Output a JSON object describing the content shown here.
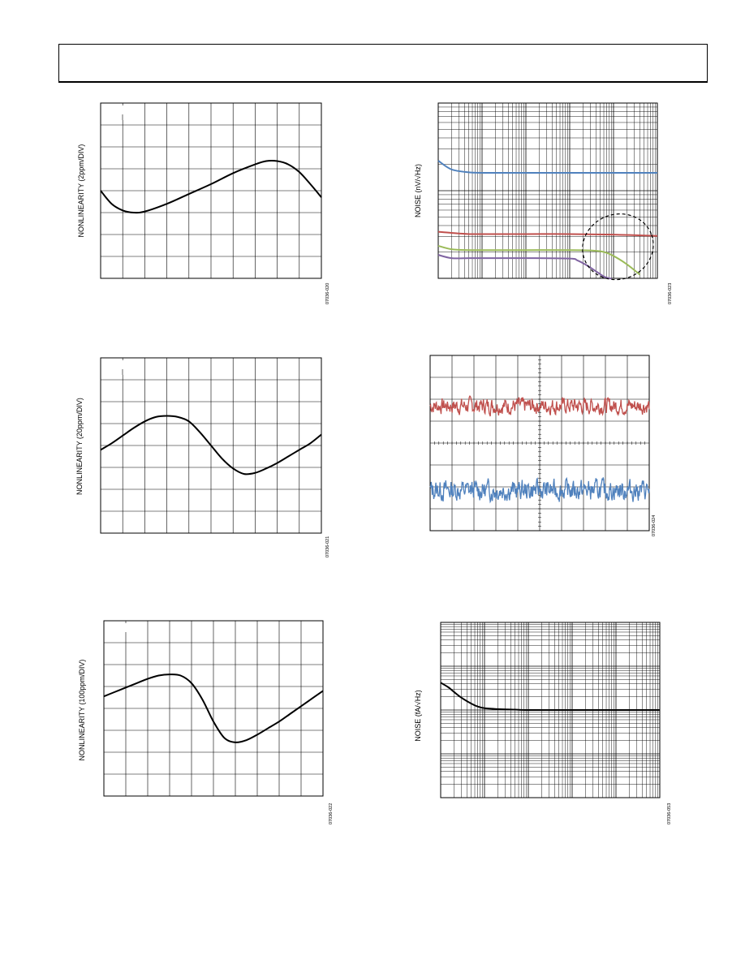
{
  "chart_data": [
    {
      "id": "c1",
      "type": "line",
      "ylabel": "NONLINEARITY (2ppm/DIV)",
      "figure_id": "07036-020",
      "x": [
        0,
        0.5,
        1,
        1.5,
        2,
        3,
        4,
        5,
        6,
        7,
        7.5,
        8,
        8.5,
        9,
        9.5,
        10
      ],
      "series": [
        {
          "color": "#000000",
          "values": [
            4.0,
            3.4,
            3.1,
            3.0,
            3.05,
            3.4,
            3.85,
            4.3,
            4.8,
            5.2,
            5.35,
            5.35,
            5.2,
            4.85,
            4.3,
            3.7
          ]
        }
      ],
      "x_divisions": 10,
      "y_divisions": 8,
      "xlim": [
        0,
        10
      ],
      "ylim": [
        0,
        8
      ],
      "grid": true
    },
    {
      "id": "c2",
      "type": "line",
      "ylabel": "NOISE (nV/√Hz)",
      "figure_id": "07036-023",
      "xscale": "log",
      "yscale": "log",
      "xlim": [
        1,
        100000
      ],
      "ylim": [
        1,
        100
      ],
      "series": [
        {
          "color": "#4f81bd",
          "x": [
            1,
            2,
            5,
            10,
            100,
            1000,
            100000
          ],
          "values": [
            22,
            17.5,
            16.2,
            16,
            16,
            16,
            16
          ]
        },
        {
          "color": "#c0504d",
          "x": [
            1,
            2,
            5,
            10,
            100,
            1000,
            10000,
            100000
          ],
          "values": [
            3.4,
            3.3,
            3.2,
            3.2,
            3.2,
            3.2,
            3.15,
            3.05
          ]
        },
        {
          "color": "#9bbb59",
          "x": [
            1,
            2,
            5,
            10,
            100,
            1000,
            3000,
            6000,
            10000,
            20000,
            40000
          ],
          "values": [
            2.35,
            2.15,
            2.1,
            2.1,
            2.1,
            2.1,
            2.08,
            2.0,
            1.8,
            1.45,
            1.1
          ]
        },
        {
          "color": "#8064a2",
          "x": [
            1,
            2,
            5,
            10,
            100,
            1000,
            1500,
            2500,
            4000,
            6000,
            8000,
            9000
          ],
          "values": [
            1.85,
            1.7,
            1.7,
            1.7,
            1.7,
            1.68,
            1.6,
            1.4,
            1.2,
            1.05,
            1.0,
            1.0
          ]
        }
      ],
      "grid": true,
      "annotation": "dashed-ellipse"
    },
    {
      "id": "c3",
      "type": "line",
      "ylabel": "NONLINEARITY (20ppm/DIV)",
      "figure_id": "07036-021",
      "x": [
        0,
        0.5,
        1,
        1.5,
        2,
        2.5,
        3,
        3.5,
        4,
        4.5,
        5,
        5.5,
        6,
        6.5,
        7,
        7.5,
        8,
        8.5,
        9,
        9.5,
        10
      ],
      "series": [
        {
          "color": "#000000",
          "values": [
            3.8,
            4.1,
            4.45,
            4.8,
            5.1,
            5.3,
            5.35,
            5.3,
            5.1,
            4.6,
            4.0,
            3.4,
            2.95,
            2.7,
            2.75,
            2.95,
            3.2,
            3.5,
            3.8,
            4.1,
            4.5
          ]
        }
      ],
      "x_divisions": 10,
      "y_divisions": 8,
      "xlim": [
        0,
        10
      ],
      "ylim": [
        0,
        8
      ],
      "grid": true
    },
    {
      "id": "c4",
      "type": "line",
      "ylabel": "",
      "figure_id": "07036-024",
      "x_divisions": 10,
      "y_divisions": 8,
      "xlim": [
        0,
        10
      ],
      "ylim": [
        0,
        8
      ],
      "grid": true,
      "series": [
        {
          "color": "#c0504d",
          "center": 5.7,
          "amplitude": 0.35,
          "points": 420,
          "seed": 7
        },
        {
          "color": "#4f81bd",
          "center": 1.85,
          "amplitude": 0.45,
          "points": 420,
          "seed": 13
        }
      ]
    },
    {
      "id": "c5",
      "type": "line",
      "ylabel": "NONLINEARITY (100ppm/DIV)",
      "figure_id": "07036-022",
      "x": [
        0,
        0.5,
        1,
        1.5,
        2,
        2.5,
        3,
        3.5,
        4,
        4.5,
        5,
        5.5,
        6,
        6.5,
        7,
        7.5,
        8,
        8.5,
        9,
        9.5,
        10
      ],
      "series": [
        {
          "color": "#000000",
          "values": [
            4.55,
            4.75,
            4.95,
            5.15,
            5.35,
            5.5,
            5.55,
            5.5,
            5.15,
            4.4,
            3.4,
            2.65,
            2.45,
            2.55,
            2.8,
            3.1,
            3.4,
            3.75,
            4.1,
            4.45,
            4.8
          ]
        }
      ],
      "x_divisions": 10,
      "y_divisions": 8,
      "xlim": [
        0,
        10
      ],
      "ylim": [
        0,
        8
      ],
      "grid": true
    },
    {
      "id": "c6",
      "type": "line",
      "ylabel": "NOISE (fA/√Hz)",
      "figure_id": "07036-053",
      "xscale": "log",
      "yscale": "log",
      "xlim": [
        1,
        100000
      ],
      "ylim": [
        1,
        10000
      ],
      "series": [
        {
          "color": "#000000",
          "x": [
            1,
            1.5,
            2,
            3,
            5,
            7,
            10,
            20,
            50,
            100,
            1000,
            10000,
            100000
          ],
          "values": [
            420,
            330,
            260,
            190,
            140,
            120,
            110,
            105,
            102,
            100,
            100,
            100,
            100
          ]
        }
      ],
      "grid": true
    }
  ]
}
